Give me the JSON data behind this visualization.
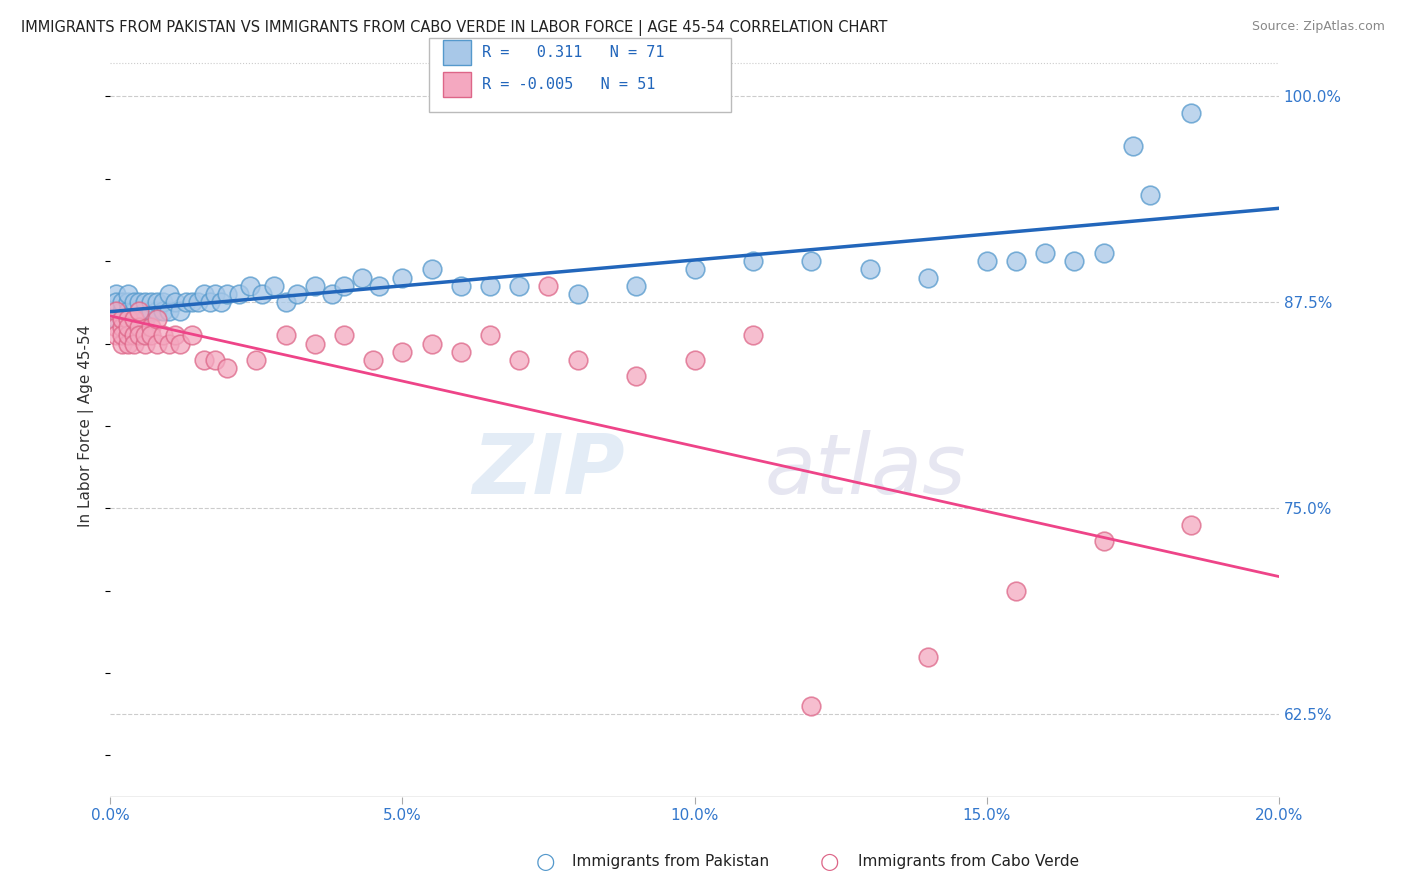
{
  "title": "IMMIGRANTS FROM PAKISTAN VS IMMIGRANTS FROM CABO VERDE IN LABOR FORCE | AGE 45-54 CORRELATION CHART",
  "source": "Source: ZipAtlas.com",
  "ylabel": "In Labor Force | Age 45-54",
  "legend_label1": "Immigrants from Pakistan",
  "legend_label2": "Immigrants from Cabo Verde",
  "r1": 0.311,
  "n1": 71,
  "r2": -0.005,
  "n2": 51,
  "xmin": 0.0,
  "xmax": 0.2,
  "ymin": 0.575,
  "ymax": 1.025,
  "yticks": [
    0.625,
    0.75,
    0.875,
    1.0
  ],
  "ytick_labels": [
    "62.5%",
    "75.0%",
    "87.5%",
    "100.0%"
  ],
  "xticks": [
    0.0,
    0.05,
    0.1,
    0.15,
    0.2
  ],
  "xtick_labels": [
    "0.0%",
    "5.0%",
    "10.0%",
    "15.0%",
    "20.0%"
  ],
  "color_pakistan": "#a8c8e8",
  "color_caboverde": "#f4a8c0",
  "edge_pakistan": "#5599cc",
  "edge_caboverde": "#dd6688",
  "trendline_pakistan": "#2266bb",
  "trendline_caboverde": "#ee4488",
  "watermark_zip": "ZIP",
  "watermark_atlas": "atlas",
  "background_color": "#ffffff",
  "pak_x": [
    0.001,
    0.001,
    0.001,
    0.001,
    0.002,
    0.002,
    0.002,
    0.002,
    0.003,
    0.003,
    0.003,
    0.003,
    0.004,
    0.004,
    0.004,
    0.004,
    0.005,
    0.005,
    0.005,
    0.006,
    0.006,
    0.006,
    0.007,
    0.007,
    0.008,
    0.008,
    0.009,
    0.009,
    0.01,
    0.01,
    0.011,
    0.012,
    0.013,
    0.014,
    0.015,
    0.016,
    0.017,
    0.018,
    0.019,
    0.02,
    0.022,
    0.024,
    0.026,
    0.028,
    0.03,
    0.032,
    0.035,
    0.038,
    0.04,
    0.043,
    0.046,
    0.05,
    0.055,
    0.06,
    0.065,
    0.07,
    0.08,
    0.09,
    0.1,
    0.11,
    0.12,
    0.13,
    0.14,
    0.15,
    0.155,
    0.16,
    0.165,
    0.17,
    0.175,
    0.178,
    0.185
  ],
  "pak_y": [
    0.88,
    0.87,
    0.875,
    0.865,
    0.87,
    0.875,
    0.865,
    0.86,
    0.875,
    0.865,
    0.87,
    0.88,
    0.865,
    0.87,
    0.875,
    0.86,
    0.87,
    0.875,
    0.86,
    0.87,
    0.875,
    0.865,
    0.87,
    0.875,
    0.87,
    0.875,
    0.87,
    0.875,
    0.87,
    0.88,
    0.875,
    0.87,
    0.875,
    0.875,
    0.875,
    0.88,
    0.875,
    0.88,
    0.875,
    0.88,
    0.88,
    0.885,
    0.88,
    0.885,
    0.875,
    0.88,
    0.885,
    0.88,
    0.885,
    0.89,
    0.885,
    0.89,
    0.895,
    0.885,
    0.885,
    0.885,
    0.88,
    0.885,
    0.895,
    0.9,
    0.9,
    0.895,
    0.89,
    0.9,
    0.9,
    0.905,
    0.9,
    0.905,
    0.97,
    0.94,
    0.99
  ],
  "cv_x": [
    0.001,
    0.001,
    0.001,
    0.002,
    0.002,
    0.002,
    0.002,
    0.003,
    0.003,
    0.003,
    0.003,
    0.004,
    0.004,
    0.004,
    0.005,
    0.005,
    0.005,
    0.006,
    0.006,
    0.007,
    0.007,
    0.008,
    0.008,
    0.009,
    0.01,
    0.011,
    0.012,
    0.014,
    0.016,
    0.018,
    0.02,
    0.025,
    0.03,
    0.035,
    0.04,
    0.045,
    0.05,
    0.055,
    0.06,
    0.065,
    0.07,
    0.075,
    0.08,
    0.09,
    0.1,
    0.11,
    0.12,
    0.14,
    0.155,
    0.17,
    0.185
  ],
  "cv_y": [
    0.87,
    0.86,
    0.855,
    0.86,
    0.865,
    0.85,
    0.855,
    0.865,
    0.85,
    0.855,
    0.86,
    0.855,
    0.865,
    0.85,
    0.86,
    0.855,
    0.87,
    0.85,
    0.855,
    0.86,
    0.855,
    0.85,
    0.865,
    0.855,
    0.85,
    0.855,
    0.85,
    0.855,
    0.84,
    0.84,
    0.835,
    0.84,
    0.855,
    0.85,
    0.855,
    0.84,
    0.845,
    0.85,
    0.845,
    0.855,
    0.84,
    0.885,
    0.84,
    0.83,
    0.84,
    0.855,
    0.63,
    0.66,
    0.7,
    0.73,
    0.74
  ]
}
